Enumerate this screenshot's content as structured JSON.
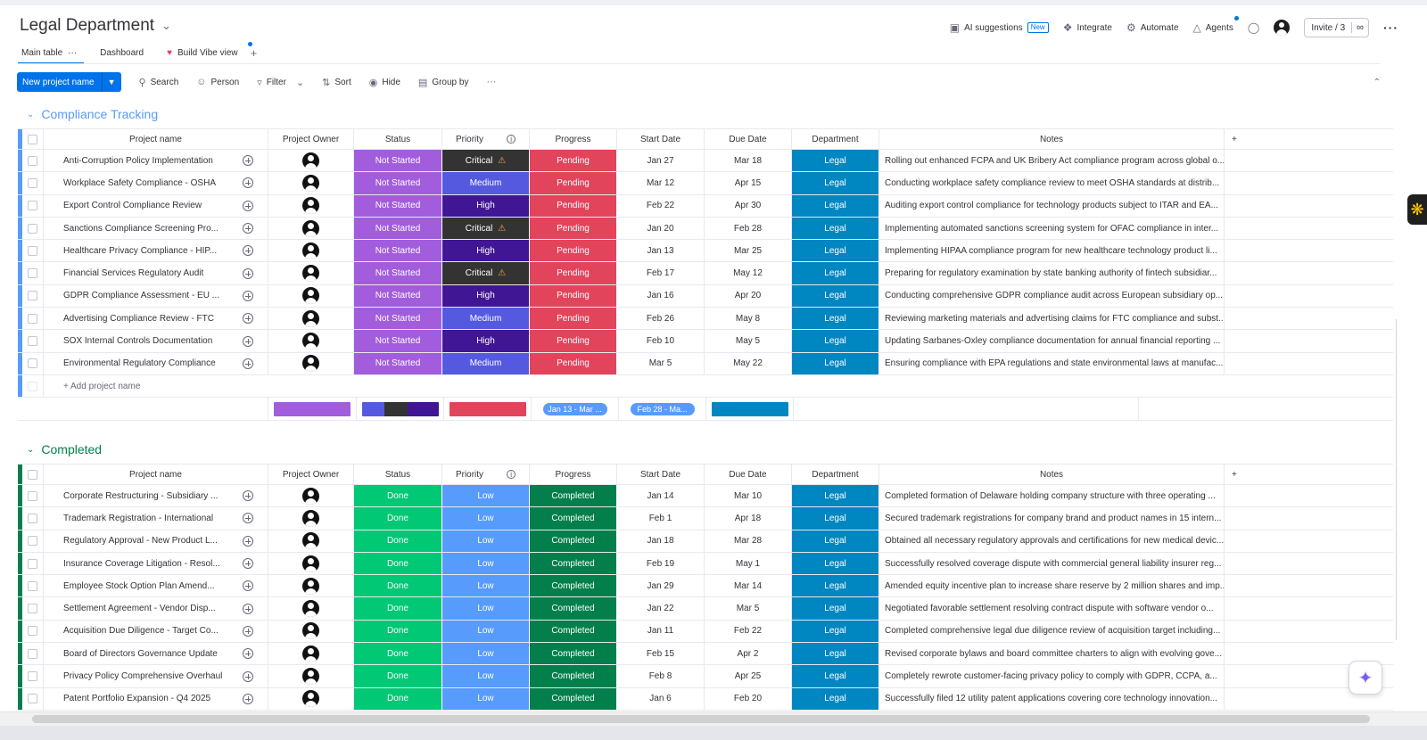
{
  "board": {
    "title": "Legal Department"
  },
  "header": {
    "ai_suggestions": "AI suggestions",
    "ai_badge": "New",
    "integrate": "Integrate",
    "automate": "Automate",
    "agents": "Agents",
    "invite": "Invite / 3"
  },
  "tabs": [
    {
      "label": "Main table"
    },
    {
      "label": "Dashboard"
    },
    {
      "label": "Build Vibe view"
    }
  ],
  "toolbar": {
    "new_item": "New project name",
    "search": "Search",
    "person": "Person",
    "filter": "Filter",
    "sort": "Sort",
    "hide": "Hide",
    "group_by": "Group by"
  },
  "columns": {
    "name": "Project name",
    "owner": "Project Owner",
    "status": "Status",
    "priority": "Priority",
    "progress": "Progress",
    "start": "Start Date",
    "due": "Due Date",
    "department": "Department",
    "notes": "Notes"
  },
  "colors": {
    "not_started": "#a25ddc",
    "done": "#00c875",
    "critical": "#333333",
    "high": "#401694",
    "medium": "#5559df",
    "low": "#579bfc",
    "pending": "#e2445c",
    "completed": "#037f4c",
    "legal": "#0086c0"
  },
  "groups": [
    {
      "title": "Compliance Tracking",
      "add_label": "+ Add project name",
      "summary": {
        "start_range": "Jan 13 - Mar ...",
        "due_range": "Feb 28 - Ma..."
      },
      "rows": [
        {
          "name": "Anti-Corruption Policy Implementation",
          "status": "Not Started",
          "priority": "Critical",
          "progress": "Pending",
          "start": "Jan 27",
          "due": "Mar 18",
          "dept": "Legal",
          "notes": "Rolling out enhanced FCPA and UK Bribery Act compliance program across global o..."
        },
        {
          "name": "Workplace Safety Compliance - OSHA",
          "status": "Not Started",
          "priority": "Medium",
          "progress": "Pending",
          "start": "Mar 12",
          "due": "Apr 15",
          "dept": "Legal",
          "notes": "Conducting workplace safety compliance review to meet OSHA standards at distrib..."
        },
        {
          "name": "Export Control Compliance Review",
          "status": "Not Started",
          "priority": "High",
          "progress": "Pending",
          "start": "Feb 22",
          "due": "Apr 30",
          "dept": "Legal",
          "notes": "Auditing export control compliance for technology products subject to ITAR and EA..."
        },
        {
          "name": "Sanctions Compliance Screening Pro...",
          "status": "Not Started",
          "priority": "Critical",
          "progress": "Pending",
          "start": "Jan 20",
          "due": "Feb 28",
          "dept": "Legal",
          "notes": "Implementing automated sanctions screening system for OFAC compliance in inter..."
        },
        {
          "name": "Healthcare Privacy Compliance - HIP...",
          "status": "Not Started",
          "priority": "High",
          "progress": "Pending",
          "start": "Jan 13",
          "due": "Mar 25",
          "dept": "Legal",
          "notes": "Implementing HIPAA compliance program for new healthcare technology product li..."
        },
        {
          "name": "Financial Services Regulatory Audit",
          "status": "Not Started",
          "priority": "Critical",
          "progress": "Pending",
          "start": "Feb 17",
          "due": "May 12",
          "dept": "Legal",
          "notes": "Preparing for regulatory examination by state banking authority of fintech subsidiar..."
        },
        {
          "name": "GDPR Compliance Assessment - EU ...",
          "status": "Not Started",
          "priority": "High",
          "progress": "Pending",
          "start": "Jan 16",
          "due": "Apr 20",
          "dept": "Legal",
          "notes": "Conducting comprehensive GDPR compliance audit across European subsidiary op..."
        },
        {
          "name": "Advertising Compliance Review - FTC",
          "status": "Not Started",
          "priority": "Medium",
          "progress": "Pending",
          "start": "Feb 26",
          "due": "May 8",
          "dept": "Legal",
          "notes": "Reviewing marketing materials and advertising claims for FTC compliance and subst..."
        },
        {
          "name": "SOX Internal Controls Documentation",
          "status": "Not Started",
          "priority": "High",
          "progress": "Pending",
          "start": "Feb 10",
          "due": "May 5",
          "dept": "Legal",
          "notes": "Updating Sarbanes-Oxley compliance documentation for annual financial reporting ..."
        },
        {
          "name": "Environmental Regulatory Compliance",
          "status": "Not Started",
          "priority": "Medium",
          "progress": "Pending",
          "start": "Mar 5",
          "due": "May 22",
          "dept": "Legal",
          "notes": "Ensuring compliance with EPA regulations and state environmental laws at manufac..."
        }
      ]
    },
    {
      "title": "Completed",
      "rows": [
        {
          "name": "Corporate Restructuring - Subsidiary ...",
          "status": "Done",
          "priority": "Low",
          "progress": "Completed",
          "start": "Jan 14",
          "due": "Mar 10",
          "dept": "Legal",
          "notes": "Completed formation of Delaware holding company structure with three operating ..."
        },
        {
          "name": "Trademark Registration - International",
          "status": "Done",
          "priority": "Low",
          "progress": "Completed",
          "start": "Feb 1",
          "due": "Apr 18",
          "dept": "Legal",
          "notes": "Secured trademark registrations for company brand and product names in 15 intern..."
        },
        {
          "name": "Regulatory Approval - New Product L...",
          "status": "Done",
          "priority": "Low",
          "progress": "Completed",
          "start": "Jan 18",
          "due": "Mar 28",
          "dept": "Legal",
          "notes": "Obtained all necessary regulatory approvals and certifications for new medical devic..."
        },
        {
          "name": "Insurance Coverage Litigation - Resol...",
          "status": "Done",
          "priority": "Low",
          "progress": "Completed",
          "start": "Feb 19",
          "due": "May 1",
          "dept": "Legal",
          "notes": "Successfully resolved coverage dispute with commercial general liability insurer reg..."
        },
        {
          "name": "Employee Stock Option Plan Amend...",
          "status": "Done",
          "priority": "Low",
          "progress": "Completed",
          "start": "Jan 29",
          "due": "Mar 14",
          "dept": "Legal",
          "notes": "Amended equity incentive plan to increase share reserve by 2 million shares and imp..."
        },
        {
          "name": "Settlement Agreement - Vendor Disp...",
          "status": "Done",
          "priority": "Low",
          "progress": "Completed",
          "start": "Jan 22",
          "due": "Mar 5",
          "dept": "Legal",
          "notes": "Negotiated favorable settlement resolving contract dispute with software vendor o..."
        },
        {
          "name": "Acquisition Due Diligence - Target Co...",
          "status": "Done",
          "priority": "Low",
          "progress": "Completed",
          "start": "Jan 11",
          "due": "Feb 22",
          "dept": "Legal",
          "notes": "Completed comprehensive legal due diligence review of acquisition target including..."
        },
        {
          "name": "Board of Directors Governance Update",
          "status": "Done",
          "priority": "Low",
          "progress": "Completed",
          "start": "Feb 15",
          "due": "Apr 2",
          "dept": "Legal",
          "notes": "Revised corporate bylaws and board committee charters to align with evolving gove..."
        },
        {
          "name": "Privacy Policy Comprehensive Overhaul",
          "status": "Done",
          "priority": "Low",
          "progress": "Completed",
          "start": "Feb 8",
          "due": "Apr 25",
          "dept": "Legal",
          "notes": "Completely rewrote customer-facing privacy policy to comply with GDPR, CCPA, a..."
        },
        {
          "name": "Patent Portfolio Expansion - Q4 2025",
          "status": "Done",
          "priority": "Low",
          "progress": "Completed",
          "start": "Jan 6",
          "due": "Feb 20",
          "dept": "Legal",
          "notes": "Successfully filed 12 utility patent applications covering core technology innovation..."
        }
      ]
    }
  ]
}
